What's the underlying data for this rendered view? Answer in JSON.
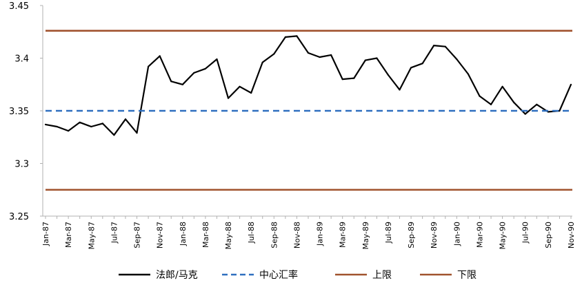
{
  "chart_data": {
    "type": "line",
    "title": "",
    "xlabel": "",
    "ylabel": "",
    "ylim": [
      3.25,
      3.45
    ],
    "yticks": [
      "3.25",
      "3.3",
      "3.35",
      "3.4",
      "3.45"
    ],
    "x": [
      "Jan-87",
      "Feb-87",
      "Mar-87",
      "Apr-87",
      "May-87",
      "Jun-87",
      "Jul-87",
      "Aug-87",
      "Sep-87",
      "Oct-87",
      "Nov-87",
      "Dec-87",
      "Jan-88",
      "Feb-88",
      "Mar-88",
      "Apr-88",
      "May-88",
      "Jun-88",
      "Jul-88",
      "Aug-88",
      "Sep-88",
      "Oct-88",
      "Nov-88",
      "Dec-88",
      "Jan-89",
      "Feb-89",
      "Mar-89",
      "Apr-89",
      "May-89",
      "Jun-89",
      "Jul-89",
      "Aug-89",
      "Sep-89",
      "Oct-89",
      "Nov-89",
      "Dec-89",
      "Jan-90",
      "Feb-90",
      "Mar-90",
      "Apr-90",
      "May-90",
      "Jun-90",
      "Jul-90",
      "Aug-90",
      "Sep-90",
      "Oct-90",
      "Nov-90"
    ],
    "xtick_labels": [
      "Jan-87",
      "Mar-87",
      "May-87",
      "Jul-87",
      "Sep-87",
      "Nov-87",
      "Jan-88",
      "Mar-88",
      "May-88",
      "Jul-88",
      "Sep-88",
      "Nov-88",
      "Jan-89",
      "Mar-89",
      "May-89",
      "Jul-89",
      "Sep-89",
      "Nov-89",
      "Jan-90",
      "Mar-90",
      "May-90",
      "Jul-90",
      "Sep-90",
      "Nov-90"
    ],
    "series": [
      {
        "name": "法郎/马克",
        "style": "solid",
        "color": "#000000",
        "values": [
          3.337,
          3.335,
          3.331,
          3.339,
          3.335,
          3.338,
          3.327,
          3.342,
          3.329,
          3.392,
          3.402,
          3.378,
          3.375,
          3.386,
          3.39,
          3.399,
          3.362,
          3.373,
          3.367,
          3.396,
          3.404,
          3.42,
          3.421,
          3.405,
          3.401,
          3.403,
          3.38,
          3.381,
          3.398,
          3.4,
          3.384,
          3.37,
          3.391,
          3.395,
          3.412,
          3.411,
          3.399,
          3.385,
          3.364,
          3.356,
          3.373,
          3.358,
          3.347,
          3.356,
          3.349,
          3.35,
          3.375
        ]
      },
      {
        "name": "中心汇率",
        "style": "dashed",
        "color": "#2e6fbf",
        "constant": 3.35
      },
      {
        "name": "上限",
        "style": "solid",
        "color": "#a0522d",
        "constant": 3.426
      },
      {
        "name": "下限",
        "style": "solid",
        "color": "#a0522d",
        "constant": 3.275
      }
    ],
    "grid": false,
    "legend_placement": "bottom"
  }
}
